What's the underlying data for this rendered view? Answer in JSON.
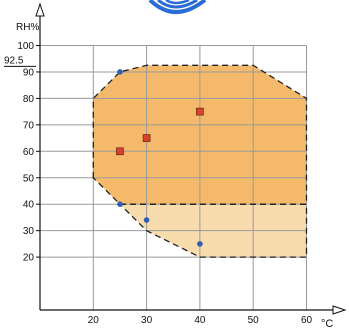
{
  "logo": {
    "name": "logo-arcs"
  },
  "chart_data": {
    "type": "scatter",
    "title": "",
    "xlabel": "°C",
    "ylabel": "RH%",
    "xlim": [
      10,
      60
    ],
    "ylim": [
      0,
      100
    ],
    "grid": true,
    "x_ticks": [
      20,
      30,
      40,
      50,
      60
    ],
    "x_tick_labels": [
      "20",
      "30",
      "40",
      "50",
      "60"
    ],
    "y_ticks": [
      20,
      30,
      40,
      50,
      60,
      70,
      80,
      90,
      100
    ],
    "y_tick_labels": [
      "20",
      "30",
      "40",
      "50",
      "60",
      "70",
      "80",
      "90",
      "100"
    ],
    "annotations": [
      {
        "text": "92.5",
        "x": 10,
        "y": 92.5
      }
    ],
    "regions": [
      {
        "label": "",
        "color": "#f4b96b",
        "points": [
          [
            20,
            50
          ],
          [
            20,
            80
          ],
          [
            25,
            90
          ],
          [
            30,
            92.5
          ],
          [
            50,
            92.5
          ],
          [
            60,
            80
          ],
          [
            60,
            40
          ],
          [
            25,
            40
          ]
        ]
      },
      {
        "label": "",
        "color": "#f8dcae",
        "points": [
          [
            25,
            40
          ],
          [
            60,
            40
          ],
          [
            60,
            20
          ],
          [
            40,
            20
          ],
          [
            30,
            30
          ]
        ]
      }
    ],
    "series": [
      {
        "marker": "square",
        "color": "#d9412b",
        "points": [
          [
            25,
            60
          ],
          [
            30,
            65
          ],
          [
            40,
            75
          ]
        ]
      },
      {
        "marker": "circle",
        "color": "#2f5fb3",
        "points": [
          [
            25,
            90
          ],
          [
            25,
            40
          ],
          [
            30,
            34
          ],
          [
            40,
            25
          ]
        ]
      }
    ],
    "colors": {
      "axis": "#111111",
      "grid": "#9a9a9a",
      "logo": "#2a6bd6"
    }
  }
}
